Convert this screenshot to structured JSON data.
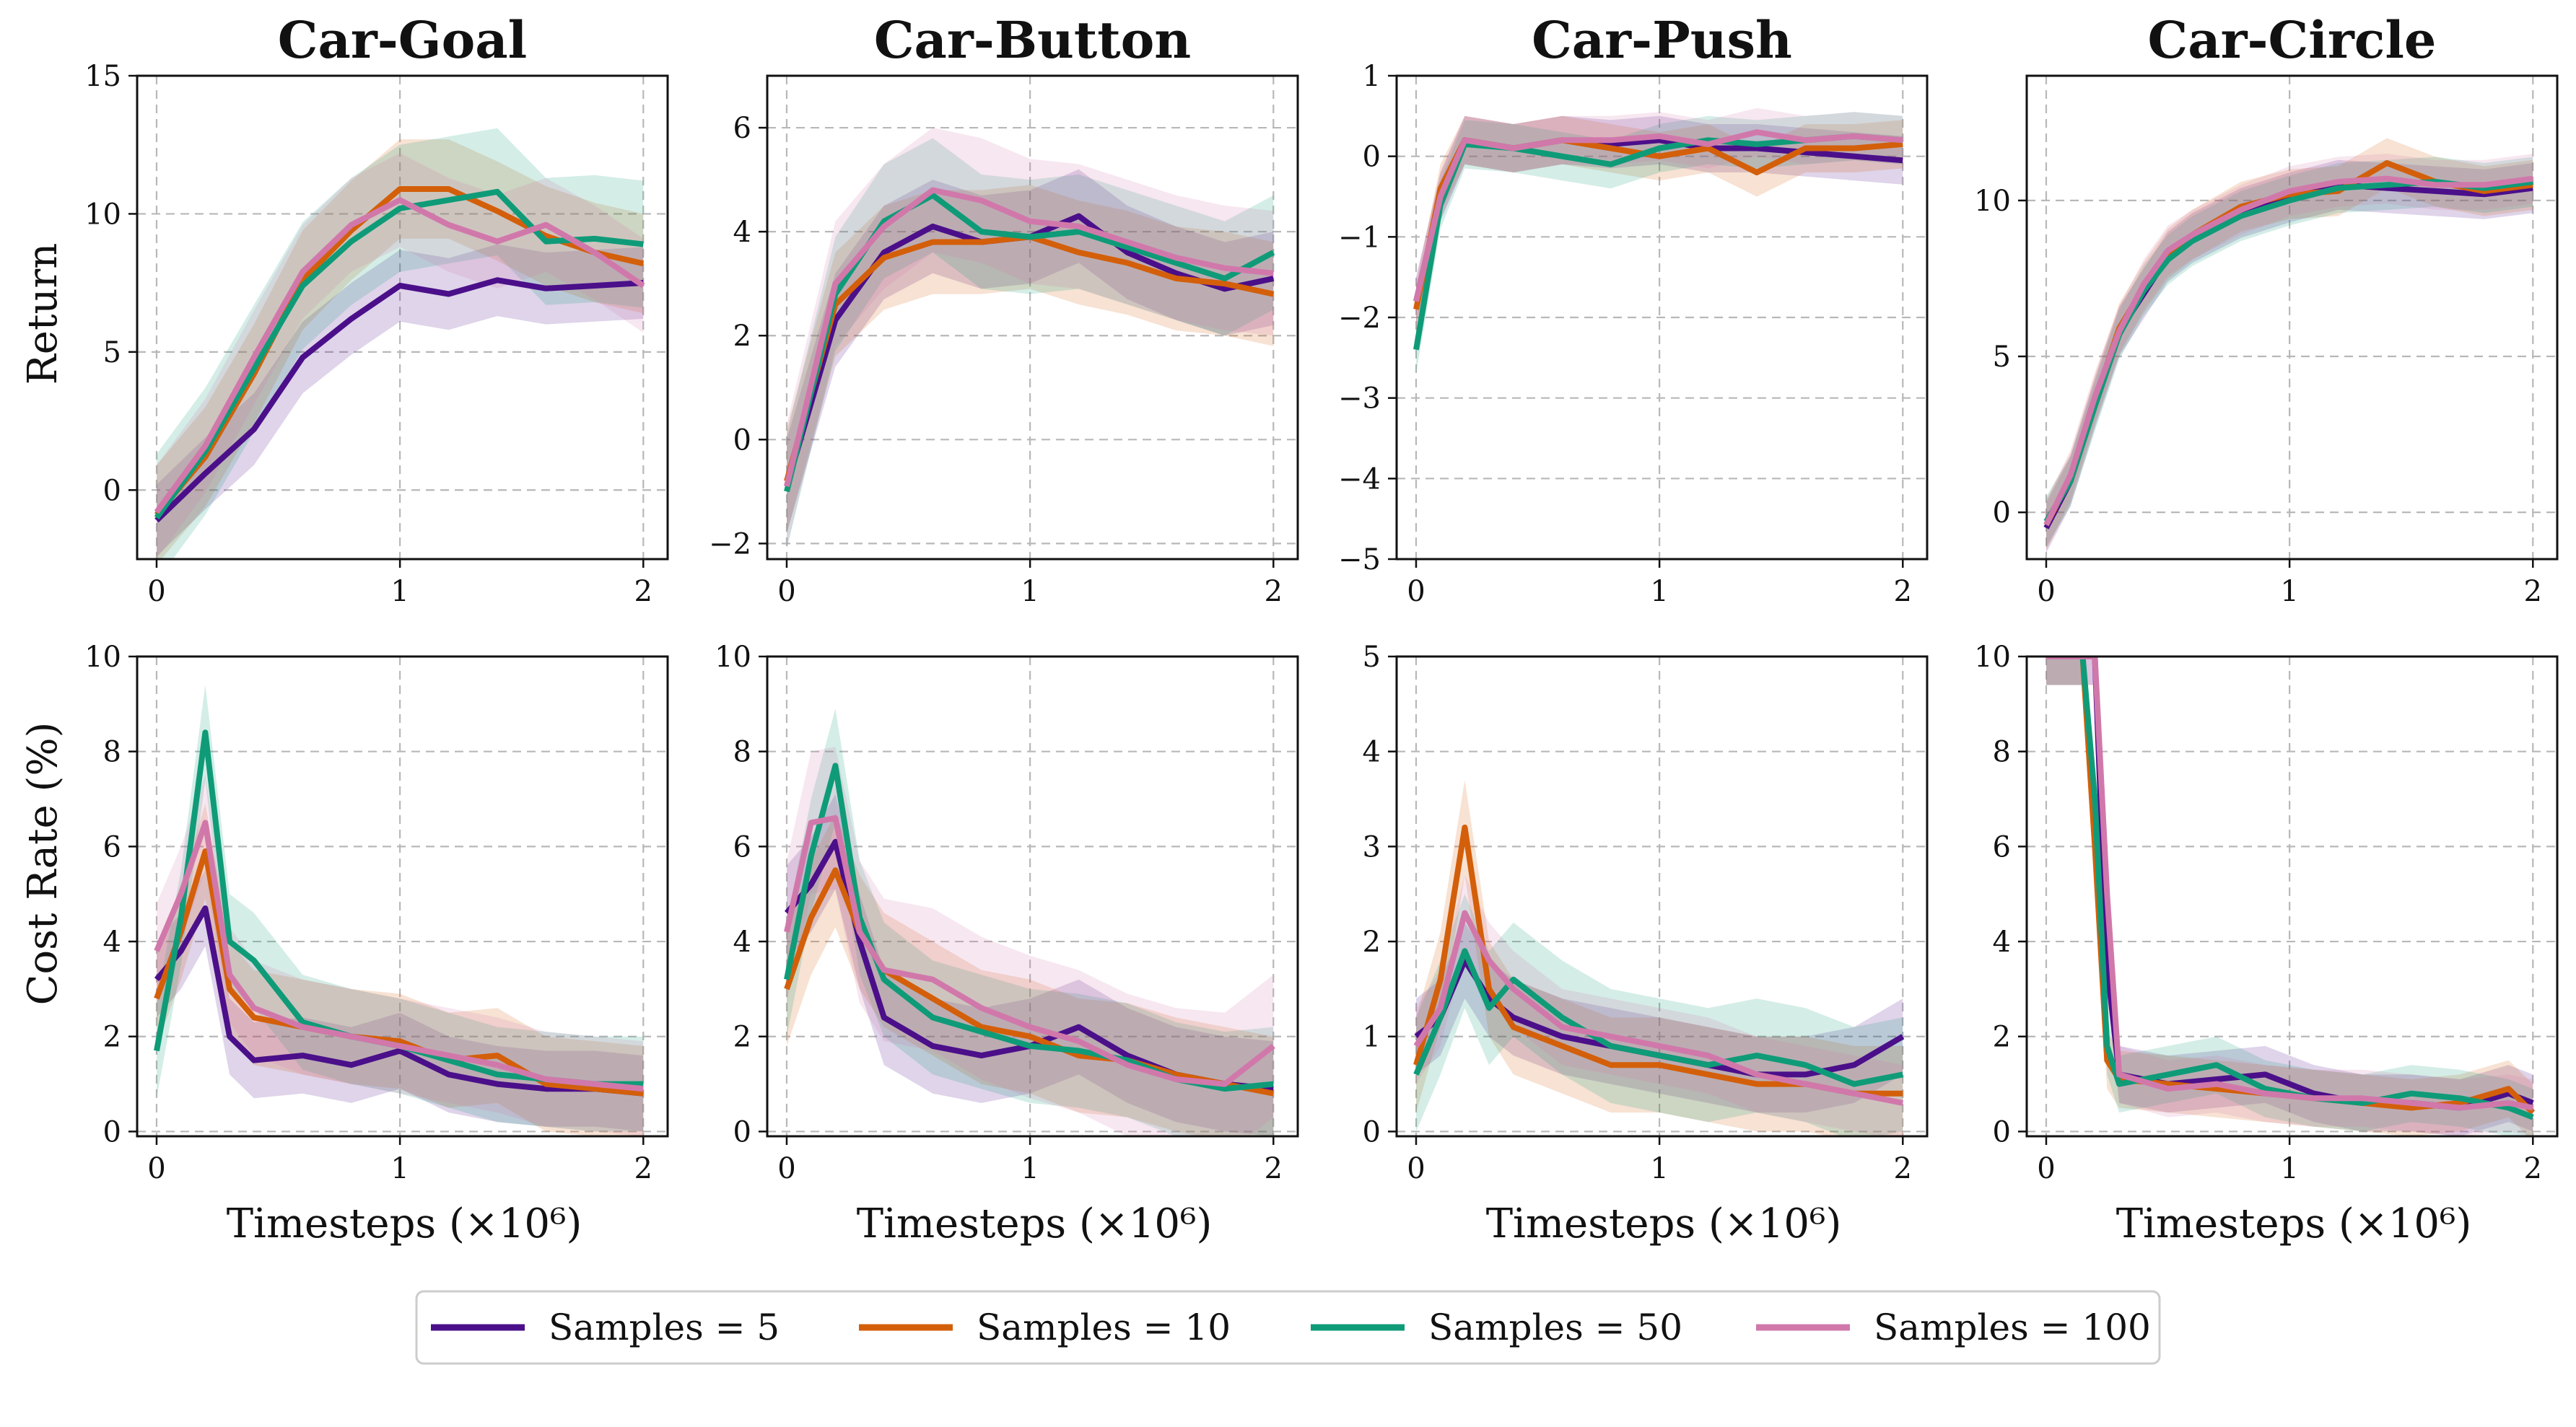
{
  "figure": {
    "ylabels": [
      "Return",
      "Cost Rate (%)"
    ],
    "xlabel": "Timesteps (×10⁶)"
  },
  "legend": {
    "placement": "bottom-center",
    "entries": [
      {
        "name": "Samples = 5",
        "color": "#4b0f8a"
      },
      {
        "name": "Samples = 10",
        "color": "#d35f0a"
      },
      {
        "name": "Samples = 50",
        "color": "#0f9b78"
      },
      {
        "name": "Samples = 100",
        "color": "#d178ab"
      }
    ]
  },
  "chart_data": [
    {
      "type": "line",
      "title": "Car-Goal",
      "metric": "Return",
      "grid": true,
      "xlim": [
        -0.08,
        2.1
      ],
      "ylim": [
        -2.5,
        15
      ],
      "xticks": [
        0,
        1,
        2
      ],
      "yticks": [
        0,
        5,
        10,
        15
      ],
      "x": [
        0,
        0.2,
        0.4,
        0.6,
        0.8,
        1.0,
        1.2,
        1.4,
        1.6,
        1.8,
        2.0
      ],
      "series": [
        {
          "name": "Samples = 5",
          "values": [
            -1.1,
            0.6,
            2.2,
            4.8,
            6.2,
            7.4,
            7.1,
            7.6,
            7.3,
            7.4,
            7.5
          ],
          "spread": 1.3
        },
        {
          "name": "Samples = 10",
          "values": [
            -0.9,
            1.2,
            4.2,
            7.6,
            9.4,
            10.9,
            10.9,
            10.1,
            9.2,
            8.6,
            8.2
          ],
          "spread": 1.8
        },
        {
          "name": "Samples = 50",
          "values": [
            -1.0,
            1.4,
            4.4,
            7.4,
            9.0,
            10.2,
            10.5,
            10.8,
            9.0,
            9.1,
            8.9
          ],
          "spread": 2.3
        },
        {
          "name": "Samples = 100",
          "values": [
            -0.8,
            1.6,
            4.8,
            7.9,
            9.6,
            10.5,
            9.6,
            9.0,
            9.6,
            8.6,
            7.4
          ],
          "spread": 1.7
        }
      ]
    },
    {
      "type": "line",
      "title": "Car-Button",
      "metric": "Return",
      "grid": true,
      "xlim": [
        -0.08,
        2.1
      ],
      "ylim": [
        -2.3,
        7
      ],
      "xticks": [
        0,
        1,
        2
      ],
      "yticks": [
        -2,
        0,
        2,
        4,
        6
      ],
      "x": [
        0,
        0.2,
        0.4,
        0.6,
        0.8,
        1.0,
        1.2,
        1.4,
        1.6,
        1.8,
        2.0
      ],
      "series": [
        {
          "name": "Samples = 5",
          "values": [
            -0.9,
            2.3,
            3.6,
            4.1,
            3.8,
            3.9,
            4.3,
            3.6,
            3.2,
            2.9,
            3.1
          ],
          "spread": 0.9
        },
        {
          "name": "Samples = 10",
          "values": [
            -0.8,
            2.6,
            3.5,
            3.8,
            3.8,
            3.9,
            3.6,
            3.4,
            3.1,
            3.0,
            2.8
          ],
          "spread": 1.0
        },
        {
          "name": "Samples = 50",
          "values": [
            -1.0,
            2.8,
            4.2,
            4.7,
            4.0,
            3.9,
            4.0,
            3.7,
            3.4,
            3.1,
            3.6
          ],
          "spread": 1.1
        },
        {
          "name": "Samples = 100",
          "values": [
            -0.9,
            3.0,
            4.1,
            4.8,
            4.6,
            4.2,
            4.1,
            3.8,
            3.5,
            3.3,
            3.2
          ],
          "spread": 1.2
        }
      ]
    },
    {
      "type": "line",
      "title": "Car-Push",
      "metric": "Return",
      "grid": true,
      "xlim": [
        -0.08,
        2.1
      ],
      "ylim": [
        -5,
        1
      ],
      "xticks": [
        0,
        1,
        2
      ],
      "yticks": [
        -5,
        -4,
        -3,
        -2,
        -1,
        0,
        1
      ],
      "x": [
        0,
        0.1,
        0.2,
        0.4,
        0.6,
        0.8,
        1.0,
        1.2,
        1.4,
        1.6,
        1.8,
        2.0
      ],
      "series": [
        {
          "name": "Samples = 5",
          "values": [
            -1.8,
            -0.5,
            0.2,
            0.1,
            0.2,
            0.15,
            0.2,
            0.1,
            0.1,
            0.05,
            0.0,
            -0.05
          ],
          "spread": 0.3
        },
        {
          "name": "Samples = 10",
          "values": [
            -1.9,
            -0.4,
            0.2,
            0.1,
            0.2,
            0.1,
            0.0,
            0.1,
            -0.2,
            0.1,
            0.1,
            0.15
          ],
          "spread": 0.3
        },
        {
          "name": "Samples = 50",
          "values": [
            -2.4,
            -0.6,
            0.15,
            0.1,
            0.0,
            -0.1,
            0.1,
            0.2,
            0.15,
            0.2,
            0.25,
            0.2
          ],
          "spread": 0.3
        },
        {
          "name": "Samples = 100",
          "values": [
            -1.8,
            -0.5,
            0.2,
            0.1,
            0.2,
            0.2,
            0.25,
            0.15,
            0.3,
            0.2,
            0.25,
            0.2
          ],
          "spread": 0.3
        }
      ]
    },
    {
      "type": "line",
      "title": "Car-Circle",
      "metric": "Return",
      "grid": true,
      "xlim": [
        -0.08,
        2.1
      ],
      "ylim": [
        -1.5,
        14
      ],
      "xticks": [
        0,
        1,
        2
      ],
      "yticks": [
        0,
        5,
        10
      ],
      "x": [
        0,
        0.1,
        0.2,
        0.3,
        0.4,
        0.5,
        0.6,
        0.8,
        1.0,
        1.2,
        1.4,
        1.6,
        1.8,
        2.0
      ],
      "series": [
        {
          "name": "Samples = 5",
          "values": [
            -0.5,
            1.0,
            3.5,
            5.8,
            7.0,
            8.2,
            8.8,
            9.6,
            10.1,
            10.5,
            10.4,
            10.3,
            10.2,
            10.4
          ],
          "spread": 0.8
        },
        {
          "name": "Samples = 10",
          "values": [
            -0.4,
            1.1,
            3.6,
            5.9,
            7.2,
            8.3,
            8.9,
            9.8,
            10.2,
            10.3,
            11.2,
            10.6,
            10.3,
            10.5
          ],
          "spread": 0.8
        },
        {
          "name": "Samples = 50",
          "values": [
            -0.3,
            1.0,
            3.4,
            5.7,
            7.1,
            8.1,
            8.7,
            9.5,
            10.0,
            10.4,
            10.5,
            10.6,
            10.4,
            10.6
          ],
          "spread": 0.8
        },
        {
          "name": "Samples = 100",
          "values": [
            -0.4,
            1.2,
            3.7,
            5.8,
            7.3,
            8.4,
            8.9,
            9.7,
            10.3,
            10.6,
            10.7,
            10.5,
            10.5,
            10.7
          ],
          "spread": 0.8
        }
      ]
    },
    {
      "type": "line",
      "title": "",
      "metric": "Cost Rate (%)",
      "grid": true,
      "xlim": [
        -0.08,
        2.1
      ],
      "ylim": [
        -0.1,
        10
      ],
      "xticks": [
        0,
        1,
        2
      ],
      "yticks": [
        0,
        2,
        4,
        6,
        8,
        10
      ],
      "x": [
        0,
        0.1,
        0.2,
        0.3,
        0.4,
        0.6,
        0.8,
        1.0,
        1.2,
        1.4,
        1.6,
        1.8,
        2.0
      ],
      "series": [
        {
          "name": "Samples = 5",
          "values": [
            3.2,
            3.8,
            4.7,
            2.0,
            1.5,
            1.6,
            1.4,
            1.7,
            1.2,
            1.0,
            0.9,
            0.9,
            0.8
          ],
          "spread": 0.8
        },
        {
          "name": "Samples = 10",
          "values": [
            2.8,
            4.2,
            5.9,
            3.0,
            2.4,
            2.2,
            2.0,
            1.9,
            1.5,
            1.6,
            1.0,
            0.9,
            0.8
          ],
          "spread": 1.0
        },
        {
          "name": "Samples = 50",
          "values": [
            1.7,
            4.5,
            8.4,
            4.0,
            3.6,
            2.3,
            2.0,
            1.8,
            1.5,
            1.2,
            1.1,
            1.0,
            1.0
          ],
          "spread": 1.0
        },
        {
          "name": "Samples = 100",
          "values": [
            3.8,
            5.0,
            6.5,
            3.3,
            2.6,
            2.2,
            2.0,
            1.8,
            1.6,
            1.4,
            1.1,
            1.0,
            0.9
          ],
          "spread": 1.0
        }
      ]
    },
    {
      "type": "line",
      "title": "",
      "metric": "Cost Rate (%)",
      "grid": true,
      "xlim": [
        -0.08,
        2.1
      ],
      "ylim": [
        -0.1,
        10
      ],
      "xticks": [
        0,
        1,
        2
      ],
      "yticks": [
        0,
        2,
        4,
        6,
        8,
        10
      ],
      "x": [
        0,
        0.1,
        0.2,
        0.3,
        0.4,
        0.6,
        0.8,
        1.0,
        1.2,
        1.4,
        1.6,
        1.8,
        2.0
      ],
      "series": [
        {
          "name": "Samples = 5",
          "values": [
            4.6,
            5.2,
            6.1,
            4.0,
            2.4,
            1.8,
            1.6,
            1.8,
            2.2,
            1.6,
            1.2,
            1.0,
            0.9
          ],
          "spread": 1.0
        },
        {
          "name": "Samples = 10",
          "values": [
            3.0,
            4.5,
            5.5,
            4.2,
            3.4,
            2.8,
            2.2,
            2.0,
            1.6,
            1.5,
            1.2,
            1.0,
            0.8
          ],
          "spread": 1.2
        },
        {
          "name": "Samples = 50",
          "values": [
            3.2,
            5.8,
            7.7,
            4.5,
            3.2,
            2.4,
            2.1,
            1.8,
            1.7,
            1.5,
            1.1,
            0.9,
            1.0
          ],
          "spread": 1.2
        },
        {
          "name": "Samples = 100",
          "values": [
            4.2,
            6.5,
            6.6,
            4.2,
            3.4,
            3.2,
            2.6,
            2.2,
            1.9,
            1.4,
            1.1,
            1.0,
            1.8
          ],
          "spread": 1.5
        }
      ]
    },
    {
      "type": "line",
      "title": "",
      "metric": "Cost Rate (%)",
      "grid": true,
      "xlim": [
        -0.08,
        2.1
      ],
      "ylim": [
        -0.05,
        5
      ],
      "xticks": [
        0,
        1,
        2
      ],
      "yticks": [
        0,
        1,
        2,
        3,
        4,
        5
      ],
      "x": [
        0,
        0.1,
        0.2,
        0.3,
        0.4,
        0.6,
        0.8,
        1.0,
        1.2,
        1.4,
        1.6,
        1.8,
        2.0
      ],
      "series": [
        {
          "name": "Samples = 5",
          "values": [
            1.0,
            1.2,
            1.8,
            1.4,
            1.2,
            1.0,
            0.9,
            0.8,
            0.7,
            0.6,
            0.6,
            0.7,
            1.0
          ],
          "spread": 0.4
        },
        {
          "name": "Samples = 10",
          "values": [
            0.7,
            1.6,
            3.2,
            1.5,
            1.1,
            0.9,
            0.7,
            0.7,
            0.6,
            0.5,
            0.5,
            0.4,
            0.4
          ],
          "spread": 0.5
        },
        {
          "name": "Samples = 50",
          "values": [
            0.6,
            1.2,
            1.9,
            1.3,
            1.6,
            1.2,
            0.9,
            0.8,
            0.7,
            0.8,
            0.7,
            0.5,
            0.6
          ],
          "spread": 0.6
        },
        {
          "name": "Samples = 100",
          "values": [
            0.9,
            1.3,
            2.3,
            1.8,
            1.5,
            1.1,
            1.0,
            0.9,
            0.8,
            0.6,
            0.5,
            0.4,
            0.3
          ],
          "spread": 0.4
        }
      ]
    },
    {
      "type": "line",
      "title": "",
      "metric": "Cost Rate (%)",
      "grid": true,
      "xlim": [
        -0.08,
        2.1
      ],
      "ylim": [
        -0.1,
        10
      ],
      "xticks": [
        0,
        1,
        2
      ],
      "yticks": [
        0,
        2,
        4,
        6,
        8,
        10
      ],
      "x": [
        0,
        0.05,
        0.1,
        0.15,
        0.2,
        0.25,
        0.3,
        0.5,
        0.7,
        0.9,
        1.1,
        1.3,
        1.5,
        1.7,
        1.9,
        2.0
      ],
      "series": [
        {
          "name": "Samples = 5",
          "values": [
            10,
            10,
            10,
            10,
            10,
            3.5,
            1.2,
            1.0,
            1.1,
            1.2,
            0.8,
            0.6,
            0.6,
            0.5,
            0.8,
            0.6
          ],
          "spread": 0.6
        },
        {
          "name": "Samples = 10",
          "values": [
            10,
            10,
            10,
            10,
            6.0,
            1.5,
            1.1,
            1.0,
            0.9,
            0.8,
            0.7,
            0.6,
            0.5,
            0.6,
            0.9,
            0.4
          ],
          "spread": 0.6
        },
        {
          "name": "Samples = 50",
          "values": [
            10,
            10,
            10,
            10,
            7.0,
            1.8,
            1.0,
            1.2,
            1.4,
            0.9,
            0.7,
            0.6,
            0.8,
            0.7,
            0.5,
            0.3
          ],
          "spread": 0.6
        },
        {
          "name": "Samples = 100",
          "values": [
            10,
            10,
            10,
            10,
            10,
            5.0,
            1.2,
            0.9,
            1.0,
            0.8,
            0.7,
            0.7,
            0.6,
            0.5,
            0.6,
            0.5
          ],
          "spread": 0.6
        }
      ]
    }
  ]
}
